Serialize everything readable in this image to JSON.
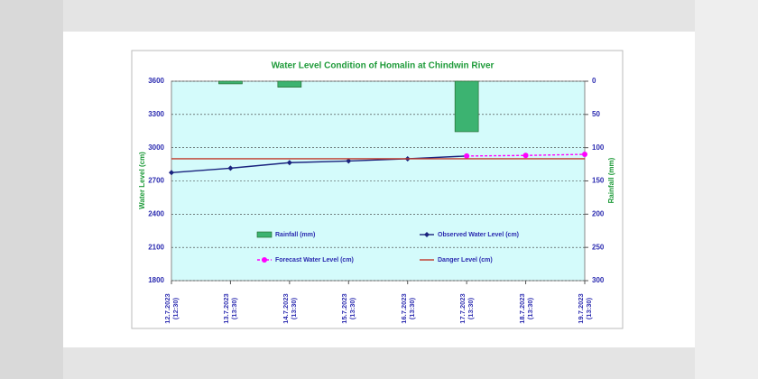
{
  "chart_data": {
    "type": "combo",
    "title": "Water Level Condition  of Homalin  at Chindwin  River",
    "ylabel": "Water Level (cm)",
    "y2label": "Rainfall (mm)",
    "categories": [
      "12.7.2023 (12:30)",
      "13.7.2023 (13:30)",
      "14.7.2023 (13:30)",
      "15.7.2023 (13:30)",
      "16.7.2023 (13:30)",
      "17.7.2023 (13:30)",
      "18.7.2023 (13:30)",
      "19.7.2023 (13:30)"
    ],
    "ylim": [
      1800,
      3600
    ],
    "yticks": [
      1800,
      2100,
      2400,
      2700,
      3000,
      3300,
      3600
    ],
    "y2lim": [
      0,
      300
    ],
    "y2ticks": [
      0,
      50,
      100,
      150,
      200,
      250,
      300
    ],
    "y2_inverted": true,
    "grid": true,
    "series": [
      {
        "name": "Rainfall (mm)",
        "type": "bar",
        "axis": "y2",
        "color": "#3cb371",
        "values": [
          0,
          4,
          9,
          0,
          0,
          76,
          0,
          0
        ]
      },
      {
        "name": "Observed Water Level (cm)",
        "type": "line",
        "color": "#1a237e",
        "marker": "diamond",
        "values": [
          2775,
          2815,
          2865,
          2880,
          2900,
          2925,
          null,
          null
        ]
      },
      {
        "name": "Forecast Water Level (cm)",
        "type": "line",
        "color": "#ff00ff",
        "marker": "circle",
        "dashed": true,
        "values": [
          null,
          null,
          null,
          null,
          null,
          2925,
          2930,
          2940
        ]
      },
      {
        "name": "Danger Level (cm)",
        "type": "line",
        "color": "#c0392b",
        "values": [
          2900,
          2900,
          2900,
          2900,
          2900,
          2900,
          2900,
          2900
        ]
      }
    ]
  }
}
